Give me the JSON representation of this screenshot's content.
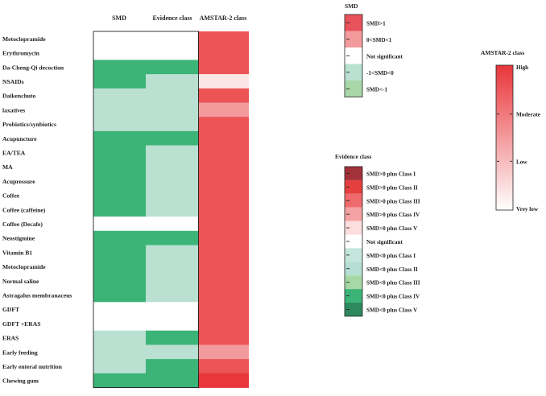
{
  "chart_data": {
    "type": "heatmap",
    "columns": [
      "SMD",
      "Evidence class",
      "AMSTAR-2 class"
    ],
    "rows": [
      {
        "label": "Metoclopramide",
        "smd": "Not significant",
        "evidence": "Not significant",
        "amstar": "Moderate"
      },
      {
        "label": "Erythromycin",
        "smd": "Not significant",
        "evidence": "Not significant",
        "amstar": "Moderate"
      },
      {
        "label": "Da-Cheng-Qi decoction",
        "smd": "SMD<-1",
        "evidence": "SMD<0 plus Class IV",
        "amstar": "Moderate"
      },
      {
        "label": "NSAIDs",
        "smd": "SMD<-1",
        "evidence": "SMD<0 plus Class I",
        "amstar": "Vrey low"
      },
      {
        "label": "Daikenchuto",
        "smd": "-1<SMD<0",
        "evidence": "SMD<0 plus Class I",
        "amstar": "Moderate"
      },
      {
        "label": "laxatives",
        "smd": "-1<SMD<0",
        "evidence": "SMD<0 plus Class I",
        "amstar": "Low"
      },
      {
        "label": "Probiotics/synbiotics",
        "smd": "-1<SMD<0",
        "evidence": "SMD<0 plus Class I",
        "amstar": "Moderate"
      },
      {
        "label": "Acupuncture",
        "smd": "SMD<-1",
        "evidence": "SMD<0 plus Class IV",
        "amstar": "Moderate"
      },
      {
        "label": "EA/TEA",
        "smd": "SMD<-1",
        "evidence": "SMD<0 plus Class I",
        "amstar": "Moderate"
      },
      {
        "label": "MA",
        "smd": "SMD<-1",
        "evidence": "SMD<0 plus Class I",
        "amstar": "Moderate"
      },
      {
        "label": "Acupressure",
        "smd": "SMD<-1",
        "evidence": "SMD<0 plus Class I",
        "amstar": "Moderate"
      },
      {
        "label": "Coffee",
        "smd": "SMD<-1",
        "evidence": "SMD<0 plus Class I",
        "amstar": "Moderate"
      },
      {
        "label": "Coffee (caffeine)",
        "smd": "SMD<-1",
        "evidence": "SMD<0 plus Class I",
        "amstar": "Moderate"
      },
      {
        "label": "Coffee (Decafe)",
        "smd": "Not significant",
        "evidence": "Not significant",
        "amstar": "Moderate"
      },
      {
        "label": "Neostigmine",
        "smd": "SMD<-1",
        "evidence": "SMD<0 plus Class IV",
        "amstar": "Moderate"
      },
      {
        "label": "Vitamin B1",
        "smd": "SMD<-1",
        "evidence": "SMD<0 plus Class I",
        "amstar": "Moderate"
      },
      {
        "label": "Metoclopramide",
        "smd": "SMD<-1",
        "evidence": "SMD<0 plus Class I",
        "amstar": "Moderate"
      },
      {
        "label": "Normal saline",
        "smd": "SMD<-1",
        "evidence": "SMD<0 plus Class I",
        "amstar": "Moderate"
      },
      {
        "label": "Astragalus membranaceus",
        "smd": "SMD<-1",
        "evidence": "SMD<0 plus Class I",
        "amstar": "Moderate"
      },
      {
        "label": "GDFT",
        "smd": "Not significant",
        "evidence": "Not significant",
        "amstar": "Moderate"
      },
      {
        "label": "GDFT +ERAS",
        "smd": "Not significant",
        "evidence": "Not significant",
        "amstar": "Moderate"
      },
      {
        "label": "ERAS",
        "smd": "-1<SMD<0",
        "evidence": "SMD<0 plus Class IV",
        "amstar": "Moderate"
      },
      {
        "label": "Early feeding",
        "smd": "-1<SMD<0",
        "evidence": "SMD<0 plus Class I",
        "amstar": "Low"
      },
      {
        "label": "Early enteral nutrition",
        "smd": "-1<SMD<0",
        "evidence": "SMD<0 plus Class IV",
        "amstar": "Moderate"
      },
      {
        "label": "Chewing gum",
        "smd": "SMD<-1",
        "evidence": "SMD<0 plus Class IV",
        "amstar": "High"
      }
    ],
    "legends": {
      "smd": {
        "title": "SMD",
        "entries": [
          {
            "label": "SMD>1",
            "color": "#e8525a"
          },
          {
            "label": "0<SMD<1",
            "color": "#f39a9c"
          },
          {
            "label": "Not significant",
            "color": "#ffffff"
          },
          {
            "label": "-1<SMD<0",
            "color": "#b9e0d1"
          },
          {
            "label": "SMD<-1",
            "color": "#a9d8a8"
          }
        ]
      },
      "evidence": {
        "title": "Evidence class",
        "entries": [
          {
            "label": "SMD>0 plus Class I",
            "color": "#a3313a"
          },
          {
            "label": "SMD>0 plus Class II",
            "color": "#e5403f"
          },
          {
            "label": "SMD>0 plus Class III",
            "color": "#ee6a6c"
          },
          {
            "label": "SMD>0 plus Class IV",
            "color": "#f4a2a3"
          },
          {
            "label": "SMD>0 plus Class V",
            "color": "#fcdede"
          },
          {
            "label": "Not significant",
            "color": "#ffffff"
          },
          {
            "label": "SMD<0 plus Class I",
            "color": "#c4e6dc"
          },
          {
            "label": "SMD<0 plus Class II",
            "color": "#b6dfd3"
          },
          {
            "label": "SMD<0 plus Class III",
            "color": "#a6d8a6"
          },
          {
            "label": "SMD<0 plus Class IV",
            "color": "#3cb478"
          },
          {
            "label": "SMD<0 plus Class V",
            "color": "#2e8a5e"
          }
        ]
      },
      "amstar": {
        "title": "AMSTAR-2 class",
        "levels": [
          "High",
          "Moderate",
          "Low",
          "Vrey low"
        ]
      }
    },
    "colors": {
      "smd_cells": {
        "SMD<-1": "#3cb478",
        "-1<SMD<0": "#b9e0d1",
        "Not significant": "#ffffff"
      },
      "evidence_cells": {
        "SMD<0 plus Class IV": "#3cb478",
        "SMD<0 plus Class I": "#b9e0d1",
        "Not significant": "#ffffff"
      },
      "amstar_cells": {
        "High": "#e8363a",
        "Moderate": "#ec5456",
        "Low": "#f39b9c",
        "Vrey low": "#fde6e6"
      },
      "gradient_top": "#e8363a",
      "gradient_bottom": "#ffffff"
    }
  }
}
